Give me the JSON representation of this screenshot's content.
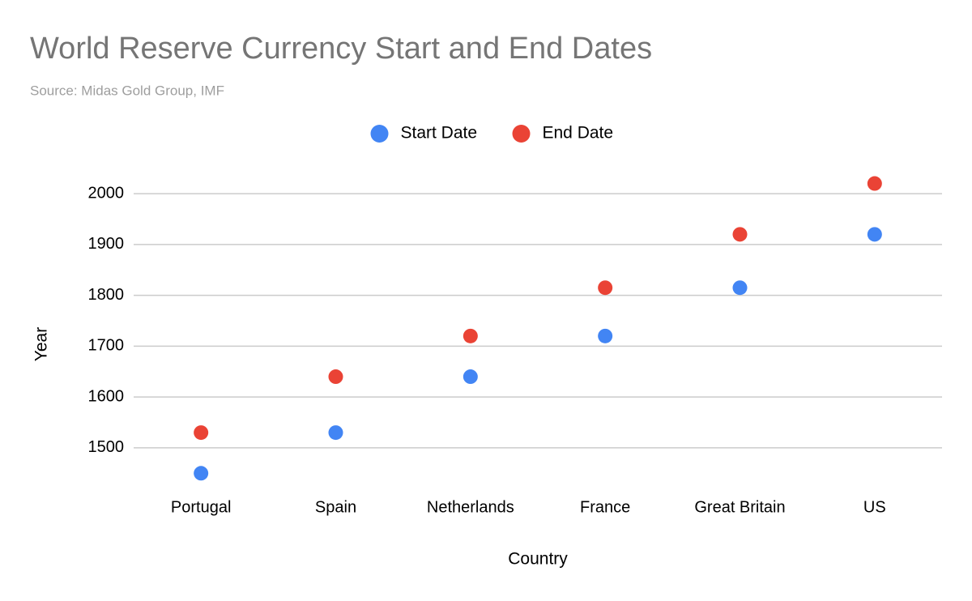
{
  "chart_data": {
    "type": "scatter",
    "title": "World Reserve Currency Start and End Dates",
    "subtitle": "Source: Midas Gold Group, IMF",
    "x_label": "Country",
    "y_label": "Year",
    "categories": [
      "Portugal",
      "Spain",
      "Netherlands",
      "France",
      "Great Britain",
      "US"
    ],
    "series": [
      {
        "name": "Start Date",
        "color": "#4285f4",
        "values": [
          1450,
          1530,
          1640,
          1720,
          1815,
          1920
        ]
      },
      {
        "name": "End Date",
        "color": "#ea4335",
        "values": [
          1530,
          1640,
          1720,
          1815,
          1920,
          2020
        ]
      }
    ],
    "ylim": [
      1425,
      2040
    ],
    "yticks": [
      1500,
      1600,
      1700,
      1800,
      1900,
      2000
    ],
    "grid": true,
    "legend": "top"
  }
}
